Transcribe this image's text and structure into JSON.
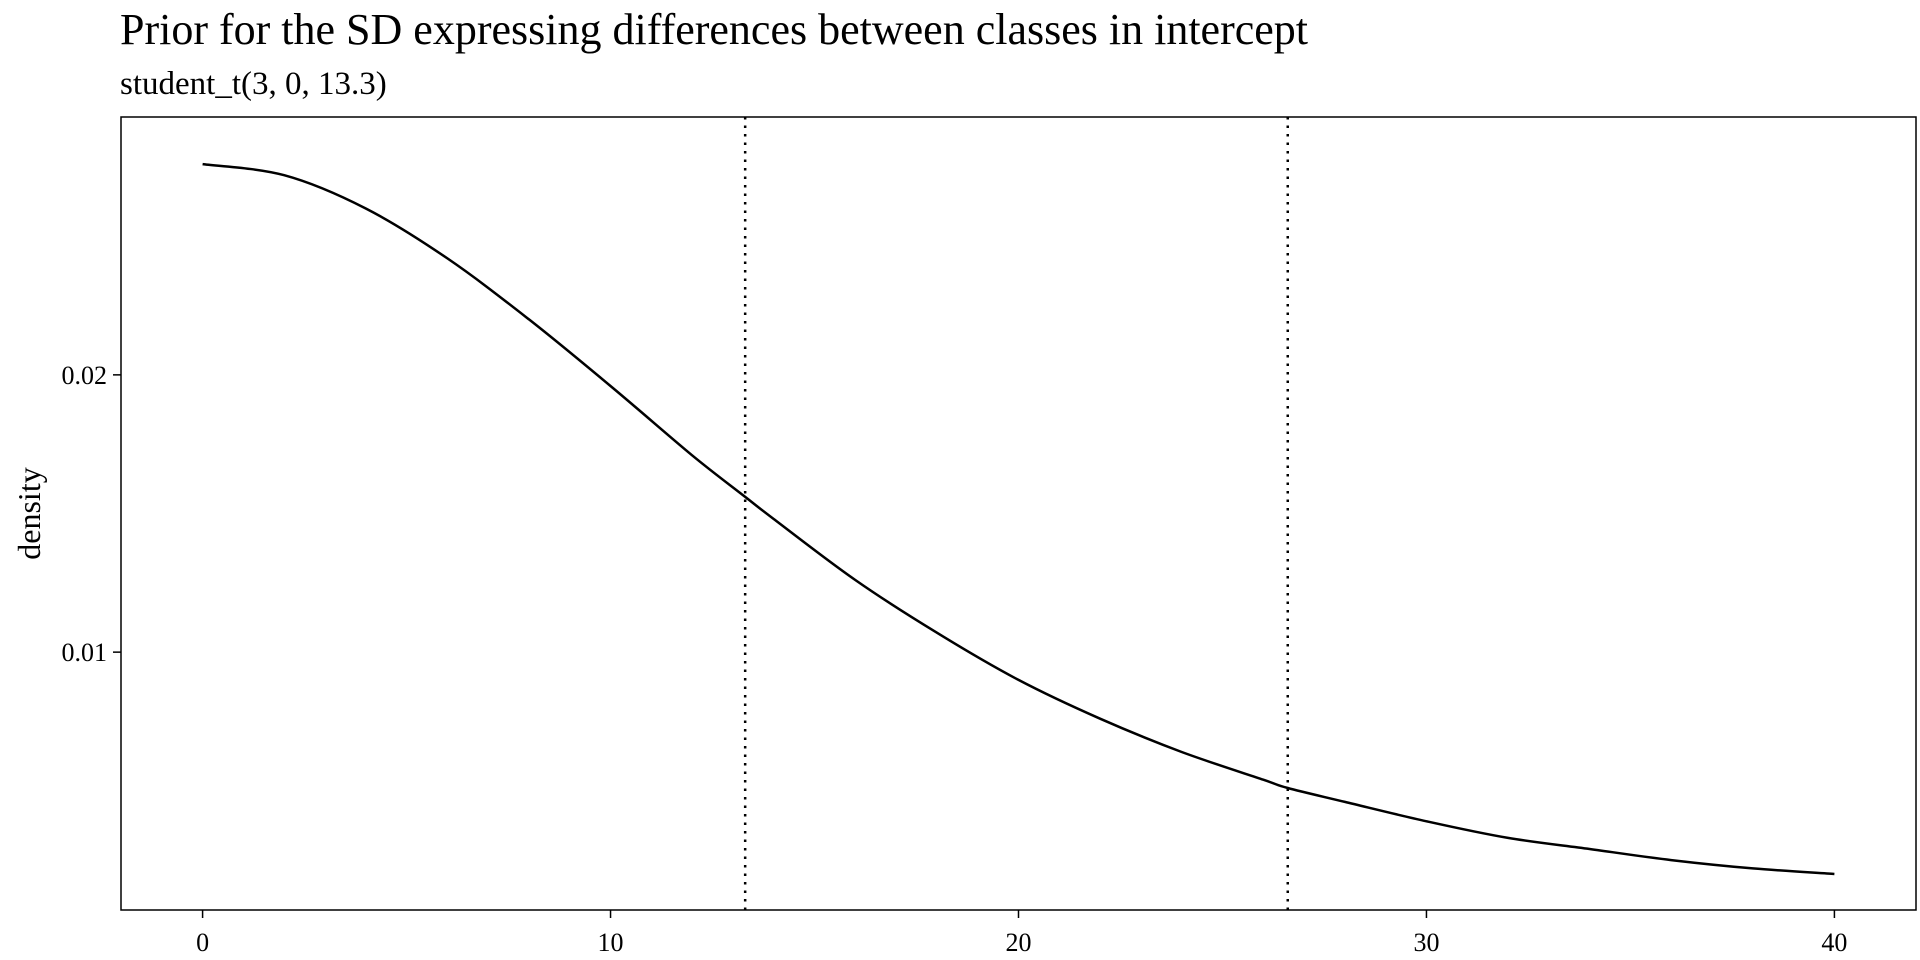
{
  "chart_data": {
    "type": "line",
    "title": "Prior for the SD expressing differences between classes in intercept",
    "subtitle": "student_t(3, 0, 13.3)",
    "xlabel": "",
    "ylabel": "density",
    "xlim": [
      -2,
      42
    ],
    "ylim": [
      0.0007,
      0.0293
    ],
    "x_ticks": [
      0,
      10,
      20,
      30,
      40
    ],
    "x_tick_labels": [
      "0",
      "10",
      "20",
      "30",
      "40"
    ],
    "y_ticks": [
      0.01,
      0.02
    ],
    "y_tick_labels": [
      "0.01",
      "0.02"
    ],
    "grid": false,
    "legend": "none",
    "series": [
      {
        "x": [
          0,
          2,
          4,
          6,
          8,
          10,
          12,
          13.3,
          14,
          16,
          18,
          20,
          22,
          24,
          26,
          26.6,
          28,
          30,
          32,
          34,
          36,
          38,
          40
        ],
        "values": [
          0.0276,
          0.0272,
          0.026,
          0.0242,
          0.022,
          0.0196,
          0.0171,
          0.0156,
          0.0148,
          0.0126,
          0.0107,
          0.009,
          0.0076,
          0.0064,
          0.0054,
          0.0051,
          0.0046,
          0.0039,
          0.0033,
          0.0029,
          0.0025,
          0.0022,
          0.002
        ]
      }
    ],
    "reference_lines": [
      {
        "x": 13.3,
        "style": "dotted"
      },
      {
        "x": 26.6,
        "style": "dotted"
      }
    ],
    "colors": {
      "line": "#000000",
      "reference": "#000000",
      "frame": "#000000"
    }
  }
}
